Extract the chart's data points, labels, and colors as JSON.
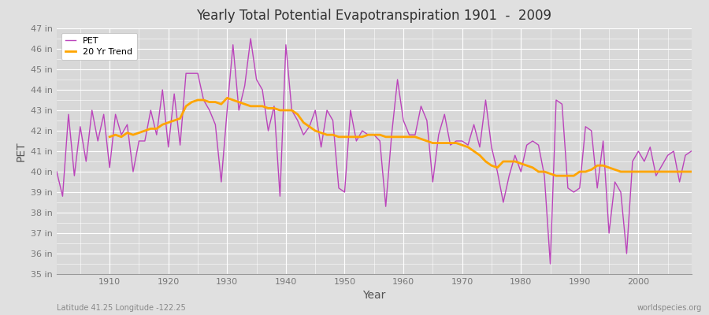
{
  "title": "Yearly Total Potential Evapotranspiration 1901  -  2009",
  "xlabel": "Year",
  "ylabel": "PET",
  "footnote_left": "Latitude 41.25 Longitude -122.25",
  "footnote_right": "worldspecies.org",
  "ylim": [
    35,
    47
  ],
  "xlim": [
    1901,
    2009
  ],
  "ytick_labels": [
    "35 in",
    "36 in",
    "37 in",
    "38 in",
    "39 in",
    "40 in",
    "41 in",
    "42 in",
    "43 in",
    "44 in",
    "45 in",
    "46 in",
    "47 in"
  ],
  "ytick_values": [
    35,
    36,
    37,
    38,
    39,
    40,
    41,
    42,
    43,
    44,
    45,
    46,
    47
  ],
  "xtick_values": [
    1910,
    1920,
    1930,
    1940,
    1950,
    1960,
    1970,
    1980,
    1990,
    2000
  ],
  "pet_color": "#BB44BB",
  "trend_color": "#FFA500",
  "fig_bg_color": "#E0E0E0",
  "plot_bg_color": "#D8D8D8",
  "grid_color": "#FFFFFF",
  "pet_years": [
    1901,
    1902,
    1903,
    1904,
    1905,
    1906,
    1907,
    1908,
    1909,
    1910,
    1911,
    1912,
    1913,
    1914,
    1915,
    1916,
    1917,
    1918,
    1919,
    1920,
    1921,
    1922,
    1923,
    1924,
    1925,
    1926,
    1927,
    1928,
    1929,
    1930,
    1931,
    1932,
    1933,
    1934,
    1935,
    1936,
    1937,
    1938,
    1939,
    1940,
    1941,
    1942,
    1943,
    1944,
    1945,
    1946,
    1947,
    1948,
    1949,
    1950,
    1951,
    1952,
    1953,
    1954,
    1955,
    1956,
    1957,
    1958,
    1959,
    1960,
    1961,
    1962,
    1963,
    1964,
    1965,
    1966,
    1967,
    1968,
    1969,
    1970,
    1971,
    1972,
    1973,
    1974,
    1975,
    1976,
    1977,
    1978,
    1979,
    1980,
    1981,
    1982,
    1983,
    1984,
    1985,
    1986,
    1987,
    1988,
    1989,
    1990,
    1991,
    1992,
    1993,
    1994,
    1995,
    1996,
    1997,
    1998,
    1999,
    2000,
    2001,
    2002,
    2003,
    2004,
    2005,
    2006,
    2007,
    2008,
    2009
  ],
  "pet_values": [
    40.0,
    38.8,
    42.8,
    39.8,
    42.2,
    40.5,
    43.0,
    41.5,
    42.8,
    40.2,
    42.8,
    41.8,
    42.3,
    40.0,
    41.5,
    41.5,
    43.0,
    41.8,
    44.0,
    41.2,
    43.8,
    41.3,
    44.8,
    44.8,
    44.8,
    43.5,
    43.0,
    42.3,
    39.5,
    43.0,
    46.2,
    43.0,
    44.2,
    46.5,
    44.5,
    44.0,
    42.0,
    43.2,
    38.8,
    46.2,
    43.0,
    42.5,
    41.8,
    42.2,
    43.0,
    41.2,
    43.0,
    42.5,
    39.2,
    39.0,
    43.0,
    41.5,
    42.0,
    41.8,
    41.8,
    41.5,
    38.3,
    41.8,
    44.5,
    42.5,
    41.8,
    41.8,
    43.2,
    42.5,
    39.5,
    41.8,
    42.8,
    41.3,
    41.5,
    41.5,
    41.3,
    42.3,
    41.2,
    43.5,
    41.2,
    40.0,
    38.5,
    39.8,
    40.8,
    40.0,
    41.3,
    41.5,
    41.3,
    39.8,
    35.5,
    43.5,
    43.3,
    39.2,
    39.0,
    39.2,
    42.2,
    42.0,
    39.2,
    41.5,
    37.0,
    39.5,
    39.0,
    36.0,
    40.5,
    41.0,
    40.5,
    41.2,
    39.8,
    40.3,
    40.8,
    41.0,
    39.5,
    40.8,
    41.0
  ],
  "trend_years": [
    1910,
    1911,
    1912,
    1913,
    1914,
    1915,
    1916,
    1917,
    1918,
    1919,
    1920,
    1921,
    1922,
    1923,
    1924,
    1925,
    1926,
    1927,
    1928,
    1929,
    1930,
    1931,
    1932,
    1933,
    1934,
    1935,
    1936,
    1937,
    1938,
    1939,
    1940,
    1941,
    1942,
    1943,
    1944,
    1945,
    1946,
    1947,
    1948,
    1949,
    1950,
    1951,
    1952,
    1953,
    1954,
    1955,
    1956,
    1957,
    1958,
    1959,
    1960,
    1961,
    1962,
    1963,
    1964,
    1965,
    1966,
    1967,
    1968,
    1969,
    1970,
    1971,
    1972,
    1973,
    1974,
    1975,
    1976,
    1977,
    1978,
    1979,
    1980,
    1981,
    1982,
    1983,
    1984,
    1985,
    1986,
    1987,
    1988,
    1989,
    1990,
    1991,
    1992,
    1993,
    1994,
    1995,
    1996,
    1997,
    1998,
    1999,
    2000,
    2001,
    2002,
    2003,
    2004,
    2005,
    2006,
    2007,
    2008,
    2009
  ],
  "trend_values": [
    41.7,
    41.8,
    41.7,
    41.9,
    41.8,
    41.9,
    42.0,
    42.1,
    42.1,
    42.3,
    42.4,
    42.5,
    42.6,
    43.2,
    43.4,
    43.5,
    43.5,
    43.4,
    43.4,
    43.3,
    43.6,
    43.5,
    43.4,
    43.3,
    43.2,
    43.2,
    43.2,
    43.1,
    43.1,
    43.0,
    43.0,
    43.0,
    42.8,
    42.4,
    42.2,
    42.0,
    41.9,
    41.8,
    41.8,
    41.7,
    41.7,
    41.7,
    41.7,
    41.7,
    41.8,
    41.8,
    41.8,
    41.7,
    41.7,
    41.7,
    41.7,
    41.7,
    41.7,
    41.6,
    41.5,
    41.4,
    41.4,
    41.4,
    41.4,
    41.4,
    41.3,
    41.2,
    41.0,
    40.8,
    40.5,
    40.3,
    40.2,
    40.5,
    40.5,
    40.5,
    40.4,
    40.3,
    40.2,
    40.0,
    40.0,
    39.9,
    39.8,
    39.8,
    39.8,
    39.8,
    40.0,
    40.0,
    40.1,
    40.3,
    40.3,
    40.2,
    40.1,
    40.0,
    40.0,
    40.0,
    40.0,
    40.0,
    40.0,
    40.0,
    40.0,
    40.0,
    40.0,
    40.0,
    40.0,
    40.0
  ]
}
